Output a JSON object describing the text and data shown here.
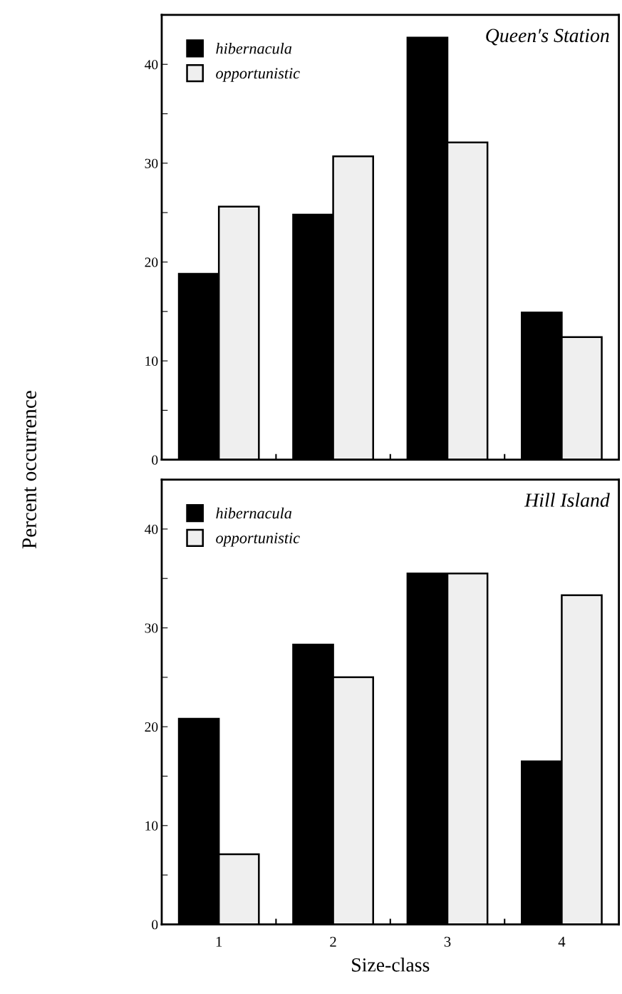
{
  "chart_data": [
    {
      "type": "bar",
      "title": "Queen′s Station",
      "ylabel": "Percent occurrence",
      "categories": [
        "1",
        "2",
        "3",
        "4"
      ],
      "series": [
        {
          "name": "hibernacula",
          "color": "#000000",
          "values": [
            18.8,
            24.8,
            42.7,
            14.9
          ]
        },
        {
          "name": "opportunistic",
          "color": "#efefef",
          "values": [
            25.6,
            30.7,
            32.1,
            12.4
          ]
        }
      ],
      "ylim": [
        0,
        45
      ],
      "yticks": [
        0,
        {
          "value": 5,
          "label": null
        },
        10,
        {
          "value": 15,
          "label": null
        },
        20,
        {
          "value": 25,
          "label": null
        },
        30,
        {
          "value": 35,
          "label": null
        },
        40
      ],
      "tick_labels": "y",
      "legend": "top left",
      "grid": false
    },
    {
      "type": "bar",
      "title": "Hill Island",
      "xlabel": "Size-class",
      "categories": [
        "1",
        "2",
        "3",
        "4"
      ],
      "series": [
        {
          "name": "hibernacula",
          "color": "#000000",
          "values": [
            20.8,
            28.3,
            35.5,
            16.5
          ]
        },
        {
          "name": "opportunistic",
          "color": "#efefef",
          "values": [
            7.1,
            25.0,
            35.5,
            33.3
          ]
        }
      ],
      "ylim": [
        0,
        45
      ],
      "yticks": [
        0,
        {
          "value": 5,
          "label": null
        },
        10,
        {
          "value": 15,
          "label": null
        },
        20,
        {
          "value": 25,
          "label": null
        },
        30,
        {
          "value": 35,
          "label": null
        },
        40
      ],
      "legend": "top left",
      "grid": false
    }
  ]
}
